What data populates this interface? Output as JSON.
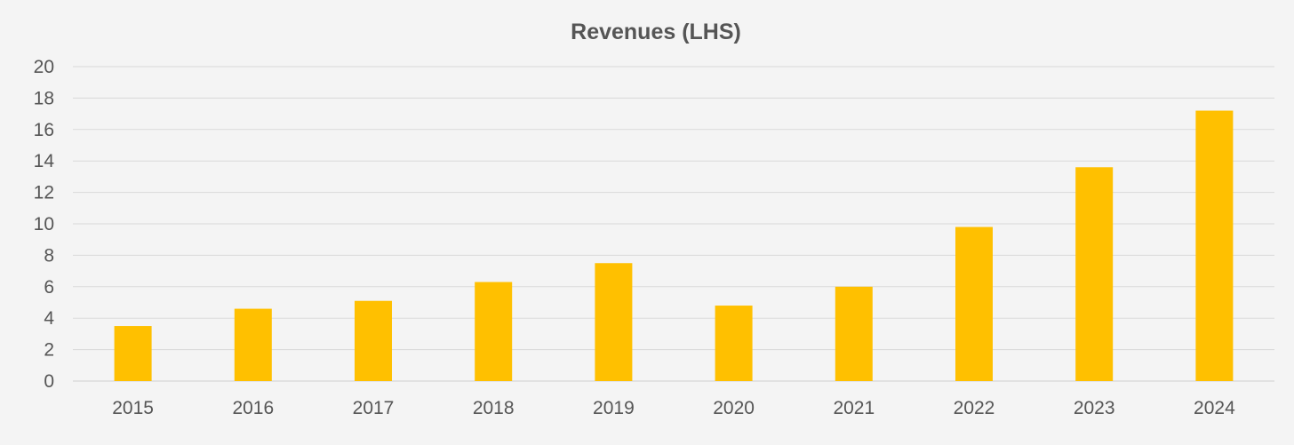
{
  "chart_data": {
    "type": "bar",
    "title": "Revenues (LHS)",
    "xlabel": "",
    "ylabel": "",
    "categories": [
      "2015",
      "2016",
      "2017",
      "2018",
      "2019",
      "2020",
      "2021",
      "2022",
      "2023",
      "2024"
    ],
    "values": [
      3.5,
      4.6,
      5.1,
      6.3,
      7.5,
      4.8,
      6.0,
      9.8,
      13.6,
      17.2
    ],
    "ylim": [
      0,
      20
    ],
    "yticks": [
      "0",
      "2",
      "4",
      "6",
      "8",
      "10",
      "12",
      "14",
      "16",
      "18",
      "20"
    ],
    "grid": true,
    "legend": "none",
    "bar_color": "#FFC000",
    "background_color": "#F4F4F4",
    "text_color": "#555555",
    "grid_color": "#D9D9D9"
  }
}
